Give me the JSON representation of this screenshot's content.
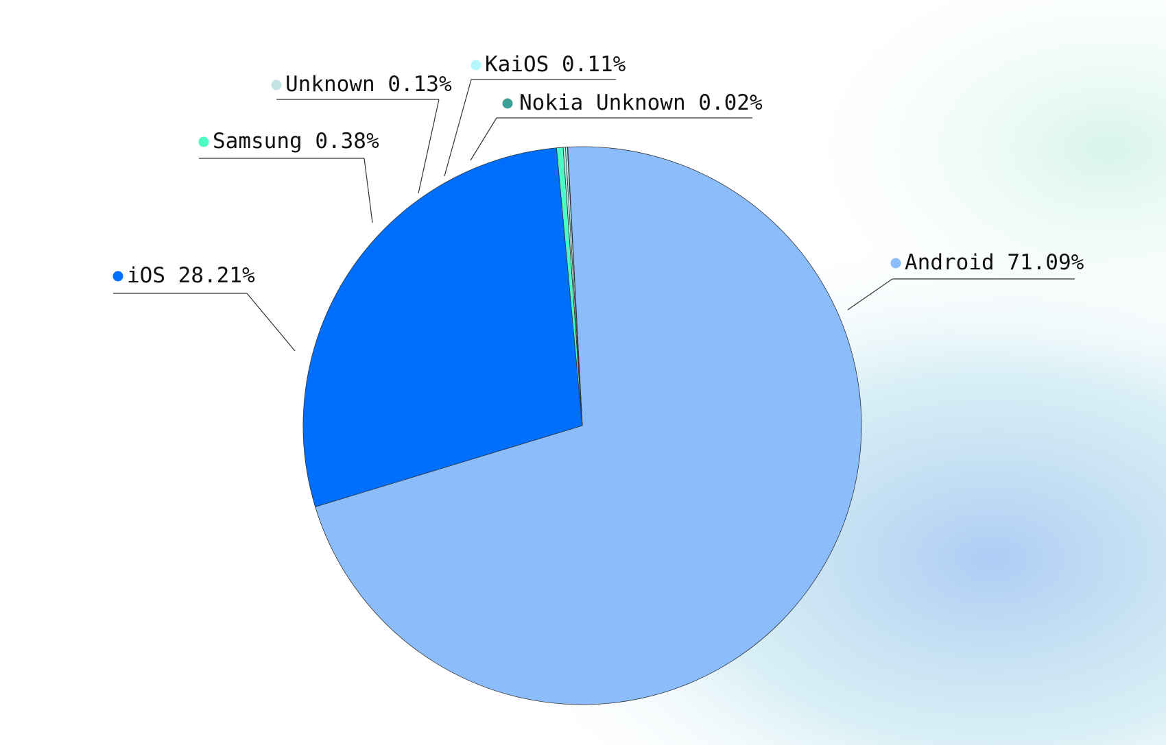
{
  "chart_data": {
    "type": "pie",
    "categories": [
      "Android",
      "iOS",
      "Samsung",
      "Unknown",
      "KaiOS",
      "Nokia Unknown"
    ],
    "values": [
      71.09,
      28.21,
      0.38,
      0.13,
      0.11,
      0.02
    ],
    "value_labels": [
      "71.09%",
      "28.21%",
      "0.38%",
      "0.13%",
      "0.11%",
      "0.02%"
    ],
    "colors": [
      "#8bbcfc",
      "#006ffd",
      "#4dfcc4",
      "#c2e4e2",
      "#b5f6fc",
      "#3f9e98"
    ]
  }
}
